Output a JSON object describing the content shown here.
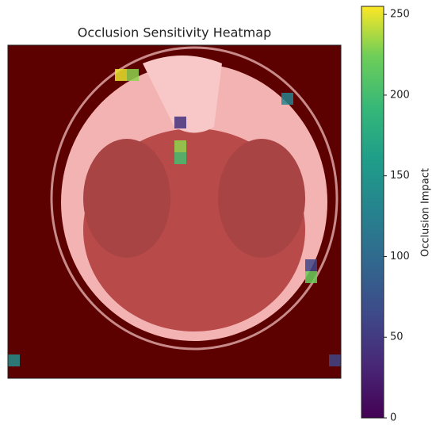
{
  "chart_data": {
    "type": "heatmap",
    "title": "Occlusion Sensitivity Heatmap",
    "colorbar_label": "Occlusion Impact",
    "colormap": "viridis",
    "clim": [
      0,
      255
    ],
    "cticks": [
      0,
      50,
      100,
      150,
      200,
      250
    ],
    "grid_size": 28,
    "x": [
      9,
      10,
      14,
      14,
      14,
      23,
      25,
      25,
      0,
      27
    ],
    "y": [
      2,
      2,
      6,
      8,
      9,
      4,
      19,
      18,
      26,
      26
    ],
    "values": [
      250,
      230,
      40,
      230,
      200,
      130,
      220,
      60,
      140,
      60
    ]
  }
}
